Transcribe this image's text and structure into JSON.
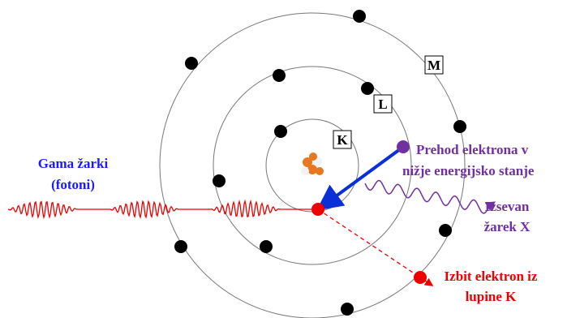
{
  "shells": [
    {
      "label": "K"
    },
    {
      "label": "L"
    },
    {
      "label": "M"
    }
  ],
  "incoming": {
    "line1": "Gama žarki",
    "line2": "(fotoni)"
  },
  "transition": {
    "line1": "Prehod elektrona v",
    "line2": "nižje energijsko stanje"
  },
  "emitted": {
    "line1": "Izsevan",
    "line2": "žarek X"
  },
  "ejected": {
    "line1": "Izbit elektron iz",
    "line2": "lupine K"
  }
}
